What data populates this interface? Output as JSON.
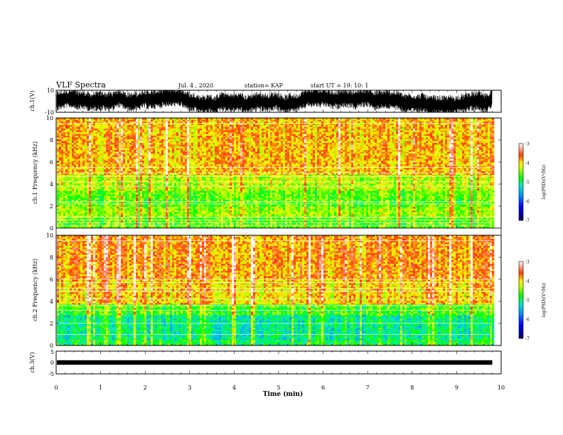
{
  "header": {
    "title": "VLF Spectra",
    "date": "Jul. 4 , 2020",
    "station": "station= KAP",
    "start": "start UT = 19: 10: 1"
  },
  "chart_data": [
    {
      "type": "line",
      "panel": "ch1-waveform",
      "ylabel": "ch.1(V)",
      "ylim": [
        -10,
        10
      ],
      "yticks": [
        "10",
        "-10"
      ],
      "xlim": [
        0,
        10
      ],
      "x_data_range": [
        0,
        9.8
      ],
      "description_values": {
        "typical_band": [
          -8,
          8
        ],
        "peak": 10,
        "trough": -10
      }
    },
    {
      "type": "heatmap",
      "panel": "ch1-spectrogram",
      "ylabel": "ch.1 Frequency (kHz)",
      "ylim": [
        0,
        10
      ],
      "yticks": [
        "0",
        "2",
        "4",
        "6",
        "8",
        "10"
      ],
      "xlim": [
        0,
        10
      ],
      "x_data_range": [
        0,
        9.8
      ],
      "colorbar": {
        "label": "log(PSD)(V²/Hz)",
        "range": [
          -7,
          -3
        ],
        "ticks": [
          "-3",
          "-4",
          "-5",
          "-6",
          "-7"
        ]
      },
      "bands": [
        {
          "from": 0,
          "to": 1,
          "level": -4.6
        },
        {
          "from": 1,
          "to": 2,
          "level": -4.4
        },
        {
          "from": 2,
          "to": 3.5,
          "level": -4.6
        },
        {
          "from": 3.5,
          "to": 5,
          "level": -4.3
        },
        {
          "from": 5,
          "to": 10,
          "level": -3.9
        }
      ],
      "lines_khz": [
        0.25,
        0.5,
        0.75,
        1.0,
        2.2,
        2.4,
        3.8,
        4.2,
        4.7,
        5.0,
        5.5,
        9.5
      ]
    },
    {
      "type": "heatmap",
      "panel": "ch2-spectrogram",
      "ylabel": "ch.2 Frequency (kHz)",
      "ylim": [
        0,
        10
      ],
      "yticks": [
        "0",
        "2",
        "4",
        "6",
        "8",
        "10"
      ],
      "xlim": [
        0,
        10
      ],
      "x_data_range": [
        0,
        9.8
      ],
      "colorbar": {
        "label": "log(PSD)(V²/Hz)",
        "range": [
          -7,
          -3
        ],
        "ticks": [
          "-3",
          "-4",
          "-5",
          "-6",
          "-7"
        ]
      },
      "bands": [
        {
          "from": 0,
          "to": 0.5,
          "level": -4.9
        },
        {
          "from": 0.5,
          "to": 2.8,
          "level": -5.1
        },
        {
          "from": 2.8,
          "to": 3.8,
          "level": -4.7
        },
        {
          "from": 3.8,
          "to": 6,
          "level": -4.0
        },
        {
          "from": 6,
          "to": 10,
          "level": -3.8
        }
      ],
      "lines_khz": [
        1.0,
        2.0,
        3.2,
        3.6,
        4.2,
        4.9,
        5.2,
        5.7,
        6.0,
        9.5
      ]
    },
    {
      "type": "line",
      "panel": "ch3-waveform",
      "ylabel": "ch.3(V)",
      "ylim": [
        -5,
        5
      ],
      "yticks": [
        "5",
        "0",
        "-5"
      ],
      "xlim": [
        0,
        10
      ],
      "x_data_range": [
        0,
        9.8
      ],
      "description_values": {
        "band": [
          -1,
          1
        ],
        "center": 0
      }
    }
  ],
  "xaxis": {
    "label": "Time (min)",
    "ticks": [
      "0",
      "1",
      "2",
      "3",
      "4",
      "5",
      "6",
      "7",
      "8",
      "9",
      "10"
    ]
  }
}
